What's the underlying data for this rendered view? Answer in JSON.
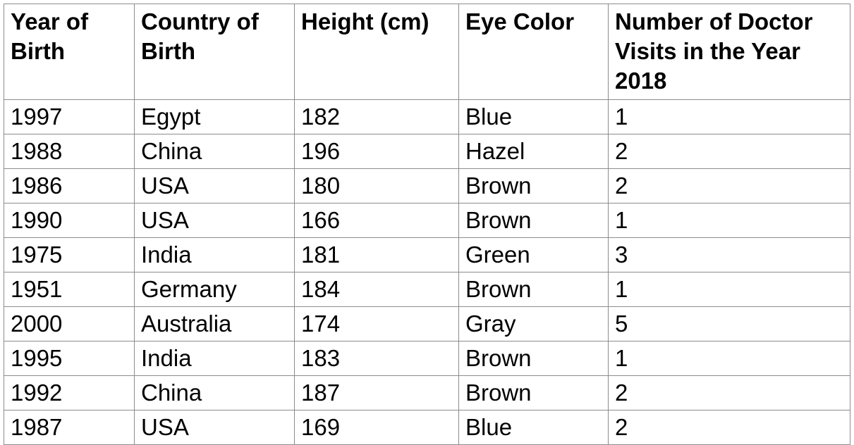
{
  "table": {
    "columns": [
      "Year of Birth",
      "Country of Birth",
      "Height (cm)",
      "Eye Color",
      "Number of Doctor Visits in the Year 2018"
    ],
    "rows": [
      [
        "1997",
        "Egypt",
        "182",
        "Blue",
        "1"
      ],
      [
        "1988",
        "China",
        "196",
        "Hazel",
        "2"
      ],
      [
        "1986",
        "USA",
        "180",
        "Brown",
        "2"
      ],
      [
        "1990",
        "USA",
        "166",
        "Brown",
        "1"
      ],
      [
        "1975",
        "India",
        "181",
        "Green",
        "3"
      ],
      [
        "1951",
        "Germany",
        "184",
        "Brown",
        "1"
      ],
      [
        "2000",
        "Australia",
        "174",
        "Gray",
        "5"
      ],
      [
        "1995",
        "India",
        "183",
        "Brown",
        "1"
      ],
      [
        "1992",
        "China",
        "187",
        "Brown",
        "2"
      ],
      [
        "1987",
        "USA",
        "169",
        "Blue",
        "2"
      ]
    ]
  }
}
